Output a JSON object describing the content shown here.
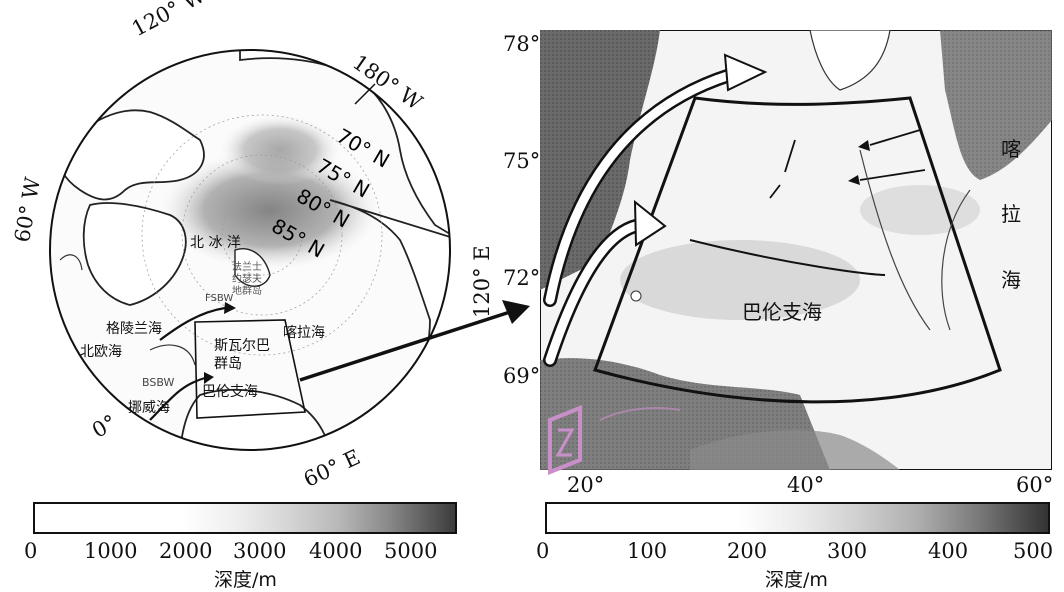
{
  "left_map": {
    "lon_labels": {
      "w120": "120° W",
      "w180": "180° W",
      "w60": "60° W",
      "e120": "120° E",
      "e60": "60° E",
      "zero": "0°"
    },
    "lat_labels": [
      "70° N",
      "75° N",
      "80° N",
      "85° N"
    ],
    "place_labels": {
      "arctic_ocean": "北  冰  洋",
      "franz_josef": "法兰士约瑟夫地群岛",
      "greenland_sea": "格陵兰海",
      "norwegian_sea_north": "北欧海",
      "kara_sea": "喀拉海",
      "svalbard": "斯瓦尔巴群岛",
      "barents_sea": "巴伦支海",
      "norwegian_sea": "挪威海",
      "bsbw": "BSBW",
      "fsbw": "FSBW"
    },
    "colorbar": {
      "ticks": [
        "0",
        "1000",
        "2000",
        "3000",
        "4000",
        "5000"
      ],
      "label": "深度/m"
    }
  },
  "right_map": {
    "lat_ticks": [
      "78°",
      "75°",
      "72°",
      "69°"
    ],
    "lon_ticks": [
      "20°",
      "40°",
      "60°"
    ],
    "place_labels": {
      "barents_sea": "巴伦支海",
      "kara_sea": [
        "喀",
        "拉",
        "海"
      ]
    },
    "colorbar": {
      "ticks": [
        "0",
        "100",
        "200",
        "300",
        "400",
        "500"
      ],
      "label": "深度/m"
    }
  },
  "colors": {
    "ink": "#111111",
    "land_dark": "#5a5a5a",
    "sea_light": "#f2f2f2",
    "watermark": "#c98fc9"
  }
}
